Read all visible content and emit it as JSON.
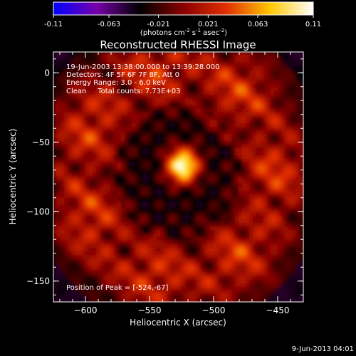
{
  "chart_data": {
    "type": "heatmap",
    "title": "Reconstructed RHESSI Image",
    "colorbar": {
      "min": -0.11,
      "max": 0.11,
      "tick_labels": [
        "-0.11",
        "-0.063",
        "-0.021",
        "0.021",
        "0.063",
        "0.11"
      ],
      "tick_values": [
        -0.11,
        -0.063,
        -0.021,
        0.021,
        0.063,
        0.11
      ],
      "unit_label": "(photons cm",
      "unit_label_parts": [
        "(photons cm",
        "-2",
        " s",
        "-1",
        " asec",
        "-2",
        ")"
      ],
      "colors": [
        "#0000ff",
        "#7700aa",
        "#000000",
        "#8a0000",
        "#e03000",
        "#ffc800",
        "#ffffff"
      ]
    },
    "xlabel": "Heliocentric X (arcsec)",
    "ylabel": "Heliocentric Y (arcsec)",
    "xlim": [
      -625,
      -430
    ],
    "ylim": [
      -165,
      15
    ],
    "xticks": [
      -600,
      -550,
      -500,
      -450
    ],
    "xtick_labels": [
      "−600",
      "−550",
      "−500",
      "−450"
    ],
    "yticks": [
      0,
      -50,
      -100,
      -150
    ],
    "ytick_labels": [
      "0",
      "−50",
      "−100",
      "−150"
    ],
    "annotations": {
      "time_range": "19-Jun-2003 13:38:00.000 to 13:39:28.000",
      "detectors": "Detectors: 4F 5F 6F 7F 8F, Att 0",
      "energy_range": "Energy Range: 3.0 - 6.0 keV",
      "method": "Clean     Total counts: 7.73E+03",
      "peak_position": "Position of Peak = [-524,-67]"
    },
    "peak": {
      "x": -524,
      "y": -67,
      "value": 0.11
    },
    "ring": {
      "center_x": -528,
      "center_y": -72,
      "radius": 75
    }
  },
  "footer": {
    "date_stamp": "9-Jun-2013 04:01"
  }
}
